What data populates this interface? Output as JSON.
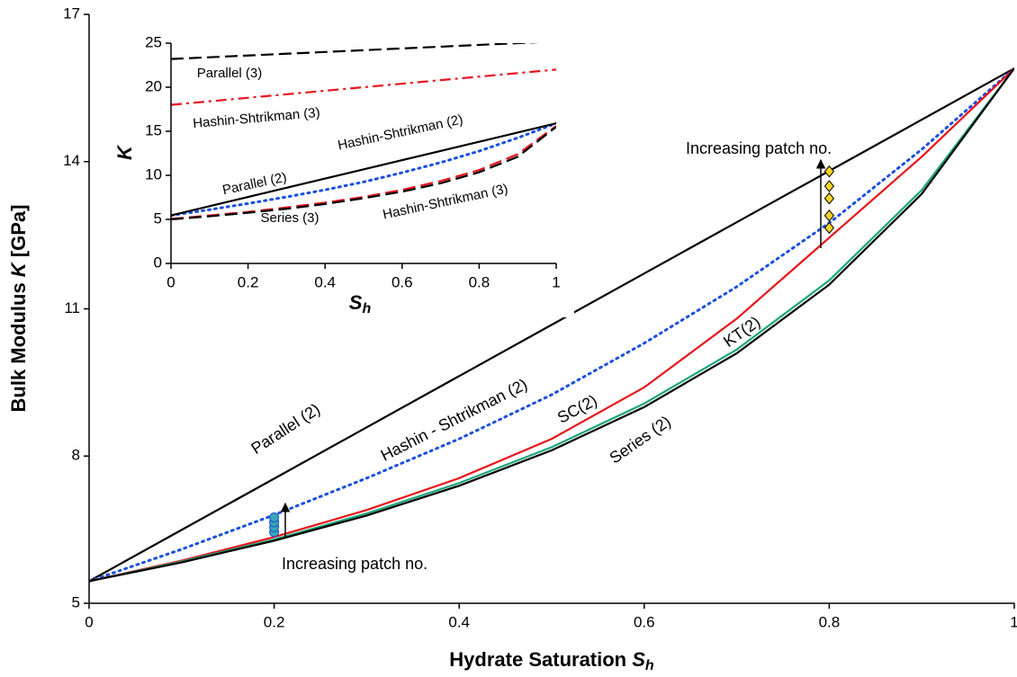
{
  "chart_data": [
    {
      "type": "line",
      "xlabel": [
        "Hydrate Saturation ",
        "S",
        "h"
      ],
      "ylabel": [
        "Bulk Modulus ",
        "K",
        " [GPa]"
      ],
      "xlim": [
        0,
        1
      ],
      "xticks": [
        0,
        0.2,
        0.4,
        0.6,
        0.8,
        1
      ],
      "ylim": [
        5,
        17
      ],
      "yticks": [
        5,
        8,
        11,
        14,
        17
      ],
      "x": [
        0,
        0.1,
        0.2,
        0.3,
        0.4,
        0.5,
        0.6,
        0.7,
        0.8,
        0.9,
        1
      ],
      "series": [
        {
          "name": "Parallel (2)",
          "color": "#000000",
          "style": "solid",
          "values": [
            5.45,
            6.495,
            7.54,
            8.585,
            9.63,
            10.675,
            11.72,
            12.765,
            13.81,
            14.855,
            15.9
          ]
        },
        {
          "name": "Hashin - Shtrikman (2)",
          "color": "#1a4fe0",
          "style": "dotted",
          "values": [
            5.45,
            6.1,
            6.8,
            7.55,
            8.35,
            9.25,
            10.3,
            11.45,
            12.75,
            14.25,
            15.9
          ]
        },
        {
          "name": "SC(2)",
          "color": "#e8141b",
          "style": "solid",
          "values": [
            5.45,
            5.87,
            6.35,
            6.9,
            7.55,
            8.35,
            9.4,
            10.8,
            12.45,
            14.1,
            15.9
          ]
        },
        {
          "name": "KT(2)",
          "color": "#1aa67a",
          "style": "solid",
          "values": [
            5.45,
            5.85,
            6.3,
            6.83,
            7.45,
            8.18,
            9.07,
            10.17,
            11.58,
            13.42,
            15.9
          ]
        },
        {
          "name": "Series (2)",
          "color": "#000000",
          "style": "solid",
          "values": [
            5.45,
            5.833,
            6.275,
            6.788,
            7.394,
            8.117,
            8.998,
            10.094,
            11.493,
            13.342,
            15.9
          ]
        },
        {
          "type": "scatter",
          "marker": "circle",
          "color": "#3aa6b0",
          "x": [
            0.2,
            0.2,
            0.2,
            0.2
          ],
          "values": [
            6.45,
            6.55,
            6.65,
            6.75
          ]
        },
        {
          "type": "scatter",
          "marker": "diamond",
          "color": "#f5d327",
          "x": [
            0.8,
            0.8,
            0.8,
            0.8,
            0.8
          ],
          "values": [
            12.65,
            12.9,
            13.25,
            13.5,
            13.8
          ]
        }
      ],
      "annotations": [
        "Increasing patch no.",
        "Increasing patch no."
      ]
    },
    {
      "type": "line",
      "xlabel": [
        "S",
        "h"
      ],
      "ylabel": [
        "K"
      ],
      "xlim": [
        0,
        1
      ],
      "xticks": [
        0,
        0.2,
        0.4,
        0.6,
        0.8,
        1
      ],
      "ylim": [
        0,
        25
      ],
      "yticks": [
        0,
        5,
        10,
        15,
        20,
        25
      ],
      "x": [
        0,
        0.1,
        0.2,
        0.3,
        0.4,
        0.5,
        0.6,
        0.7,
        0.8,
        0.9,
        1
      ],
      "series": [
        {
          "name": "Parallel (3)",
          "color": "#000000",
          "style": "dashed",
          "x": [
            0,
            1
          ],
          "values": [
            23.2,
            25.2
          ]
        },
        {
          "name": "Hashin-Shtrikman (3)",
          "color": "#e8141b",
          "style": "dashdot",
          "x": [
            0,
            1
          ],
          "values": [
            18.0,
            22.0
          ]
        },
        {
          "name": "Hashin-Shtrikman (2)",
          "color": "#1a4fe0",
          "style": "dotted",
          "values": [
            5.45,
            6.1,
            6.8,
            7.55,
            8.35,
            9.25,
            10.3,
            11.45,
            12.75,
            14.25,
            15.9
          ]
        },
        {
          "name": "Parallel (2)",
          "color": "#000000",
          "style": "solid",
          "x": [
            0,
            1
          ],
          "values": [
            5.45,
            15.9
          ]
        },
        {
          "name": "Hashin-Shtrikman (3)",
          "color": "#e8141b",
          "style": "dashed",
          "values": [
            5.05,
            5.45,
            5.85,
            6.35,
            6.9,
            7.55,
            8.35,
            9.35,
            10.6,
            12.4,
            15.6
          ]
        },
        {
          "name": "Series (3)",
          "color": "#000000",
          "style": "dashed",
          "values": [
            5.0,
            5.35,
            5.75,
            6.2,
            6.75,
            7.4,
            8.15,
            9.1,
            10.35,
            12.1,
            15.5
          ]
        }
      ]
    }
  ]
}
